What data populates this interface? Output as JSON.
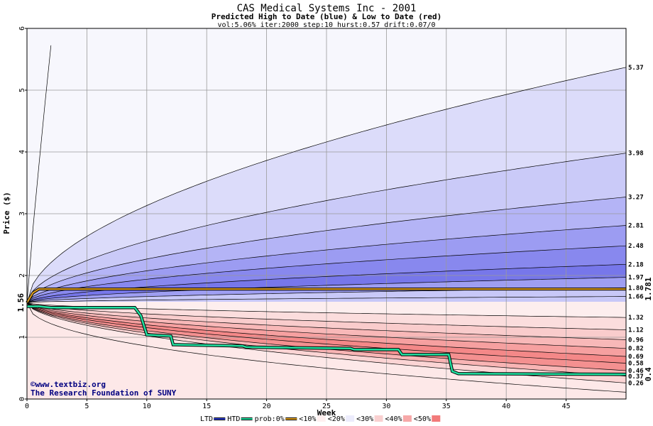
{
  "chart_data": {
    "type": "area",
    "title": "CAS Medical Systems Inc - 2001",
    "subtitle": "Predicted High to Date (blue) &  Low to Date (red)",
    "params": "vol:5.06% iter:2000 step:10 hurst:0.57 drift:0.07/0",
    "xlabel": "Week",
    "ylabel": "Price ($)",
    "xlim": [
      0,
      50
    ],
    "ylim": [
      0,
      6
    ],
    "x_ticks": [
      "0",
      "5",
      "10",
      "15",
      "20",
      "25",
      "30",
      "35",
      "40",
      "45"
    ],
    "y_ticks": [
      "0",
      "1",
      "2",
      "3",
      "4",
      "5",
      "6"
    ],
    "grid": true,
    "start_price": 1.56,
    "start_price_label": "1.56",
    "current_price": 1.781,
    "current_price_label": "1.781",
    "htd_final": 0.4,
    "htd_final_label": "0.4",
    "upper_curves": [
      {
        "label": "5.37",
        "end": 5.37
      },
      {
        "label": "3.98",
        "end": 3.98
      },
      {
        "label": "3.27",
        "end": 3.27
      },
      {
        "label": "2.81",
        "end": 2.81
      },
      {
        "label": "2.48",
        "end": 2.48
      },
      {
        "label": "2.18",
        "end": 2.18
      },
      {
        "label": "1.97",
        "end": 1.97
      },
      {
        "label": "1.80",
        "end": 1.8
      },
      {
        "label": "1.66",
        "end": 1.66
      }
    ],
    "lower_curves": [
      {
        "label": "1.32",
        "end": 1.32
      },
      {
        "label": "1.12",
        "end": 1.12
      },
      {
        "label": "0.96",
        "end": 0.96
      },
      {
        "label": "0.82",
        "end": 0.82
      },
      {
        "label": "0.69",
        "end": 0.69
      },
      {
        "label": "0.58",
        "end": 0.58
      },
      {
        "label": "0.46",
        "end": 0.46
      },
      {
        "label": "0.37",
        "end": 0.37
      },
      {
        "label": "0.26",
        "end": 0.26
      }
    ],
    "htd_series": {
      "x": [
        0,
        1,
        2,
        9,
        9.5,
        10,
        12,
        12.2,
        18,
        18.3,
        27,
        27.3,
        31,
        31.3,
        35.2,
        35.5,
        36,
        50
      ],
      "price": [
        1.5,
        1.5,
        1.48,
        1.48,
        1.35,
        1.04,
        1.02,
        0.88,
        0.86,
        0.84,
        0.82,
        0.8,
        0.8,
        0.72,
        0.72,
        0.45,
        0.41,
        0.4
      ]
    },
    "current_series": {
      "x": [
        0,
        0.5,
        1,
        27,
        50
      ],
      "price": [
        1.56,
        1.72,
        1.78,
        1.78,
        1.781
      ]
    },
    "credit_line1": "©www.textbiz.org",
    "credit_line2": "The Research Foundation of SUNY",
    "legend": [
      {
        "label": "LTD",
        "color": "#2f3fd0"
      },
      {
        "label": "HTD",
        "color": "#20e0a0"
      },
      {
        "label": "prob:0%",
        "color": "#e0a020"
      },
      {
        "label": "<10%",
        "color": "#fff0f0"
      },
      {
        "label": "<20%",
        "color": "#ececfc"
      },
      {
        "label": "<30%",
        "color": "#f9d0d0"
      },
      {
        "label": "<40%",
        "color": "#f6a8a8"
      },
      {
        "label": "<50%",
        "color": "#f27a7a"
      }
    ],
    "colors": {
      "upper_bands": [
        "#f7f7fd",
        "#dcdcfa",
        "#cacaf8",
        "#b4b4f6",
        "#9c9cf2",
        "#8888ee",
        "#7777ea",
        "#9e9ef2",
        "#c8c8f8"
      ],
      "lower_bands": [
        "#fdeeee",
        "#fbdddd",
        "#f9cccc",
        "#f8b8b8",
        "#f6a0a0",
        "#f48888",
        "#f49090",
        "#f8b4b4",
        "#fbd4d4",
        "#fde8e8"
      ],
      "htd": "#20e0a0",
      "current": "#e0a020",
      "right_label_start": "#006040",
      "right_label_current": "#806000",
      "right_label_htd": "#008040"
    }
  }
}
